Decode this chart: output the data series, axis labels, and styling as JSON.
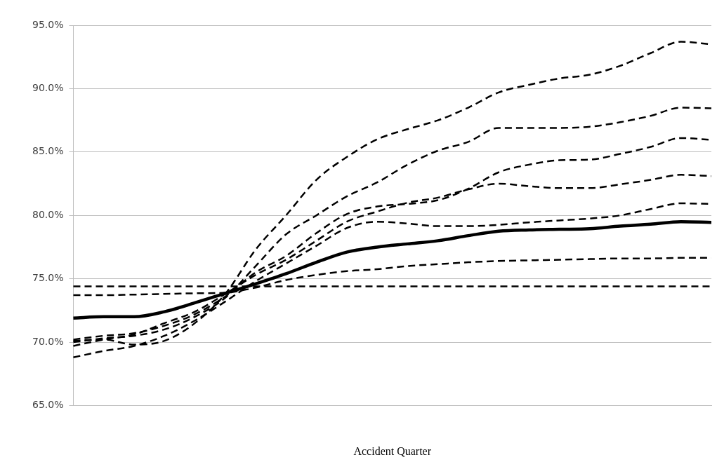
{
  "chart_data": {
    "type": "line",
    "xlabel": "Accident Quarter",
    "categories": [
      null,
      null,
      null,
      null,
      null,
      null,
      null,
      null,
      null,
      null,
      null,
      null,
      null,
      null,
      null,
      null,
      null,
      null,
      null,
      null,
      null,
      null
    ],
    "ylim": [
      65,
      95
    ],
    "yticks": [
      {
        "value": 65,
        "label": "65.0%"
      },
      {
        "value": 70,
        "label": "70.0%"
      },
      {
        "value": 75,
        "label": "75.0%"
      },
      {
        "value": 80,
        "label": "80.0%"
      },
      {
        "value": 85,
        "label": "85.0%"
      },
      {
        "value": 90,
        "label": "90.0%"
      },
      {
        "value": 95,
        "label": "95.0%"
      }
    ],
    "grid": "y",
    "legend": false,
    "marker": "none",
    "series": [
      {
        "color": "#000000",
        "line_style": "solid",
        "values": [
          71.9,
          72.0,
          72.0,
          72.4,
          73.1,
          73.85,
          74.6,
          75.4,
          76.3,
          77.1,
          77.5,
          77.75,
          78.0,
          78.4,
          78.75,
          78.85,
          78.9,
          78.95,
          79.15,
          79.3,
          79.5,
          79.45
        ]
      },
      {
        "color": "#000000",
        "line_style": "dashed",
        "values": [
          74.4,
          74.4,
          74.4,
          74.4,
          74.4,
          74.4,
          74.4,
          74.4,
          74.4,
          74.4,
          74.4,
          74.4,
          74.4,
          74.4,
          74.4,
          74.4,
          74.4,
          74.4,
          74.4,
          74.4,
          74.4,
          74.4
        ]
      },
      {
        "color": "#000000",
        "line_style": "dashed",
        "values": [
          73.7,
          73.7,
          73.75,
          73.8,
          73.85,
          73.9,
          74.3,
          74.9,
          75.3,
          75.6,
          75.75,
          76.0,
          76.15,
          76.3,
          76.4,
          76.45,
          76.5,
          76.55,
          76.6,
          76.6,
          76.65,
          76.65
        ]
      },
      {
        "color": "#000000",
        "line_style": "dashed",
        "values": [
          68.8,
          69.3,
          69.7,
          70.5,
          71.7,
          73.2,
          74.8,
          76.2,
          77.6,
          79.0,
          79.5,
          79.35,
          79.15,
          79.15,
          79.25,
          79.45,
          79.6,
          79.75,
          80.0,
          80.5,
          80.95,
          80.9
        ]
      },
      {
        "color": "#000000",
        "line_style": "dashed",
        "values": [
          69.7,
          70.2,
          70.6,
          71.5,
          72.4,
          73.8,
          75.3,
          76.5,
          78.0,
          79.5,
          80.3,
          81.0,
          81.4,
          82.05,
          82.5,
          82.3,
          82.15,
          82.15,
          82.45,
          82.8,
          83.2,
          83.1
        ]
      },
      {
        "color": "#000000",
        "line_style": "dashed",
        "values": [
          70.2,
          70.5,
          70.7,
          71.3,
          72.2,
          73.6,
          75.5,
          76.8,
          78.6,
          80.1,
          80.7,
          80.9,
          81.2,
          82.1,
          83.4,
          84.0,
          84.35,
          84.4,
          84.85,
          85.4,
          86.1,
          85.95
        ]
      },
      {
        "color": "#000000",
        "line_style": "dashed",
        "values": [
          70.0,
          70.3,
          70.5,
          71.0,
          72.0,
          73.5,
          76.0,
          78.5,
          80.0,
          81.5,
          82.6,
          84.0,
          85.1,
          85.8,
          86.9,
          86.9,
          86.9,
          87.0,
          87.35,
          87.85,
          88.5,
          88.45
        ]
      },
      {
        "color": "#000000",
        "line_style": "dashed",
        "values": [
          70.1,
          70.2,
          69.8,
          70.1,
          71.5,
          73.8,
          77.3,
          80.0,
          82.8,
          84.6,
          86.0,
          86.8,
          87.5,
          88.5,
          89.7,
          90.3,
          90.8,
          91.1,
          91.8,
          92.8,
          93.7,
          93.5
        ]
      }
    ]
  }
}
